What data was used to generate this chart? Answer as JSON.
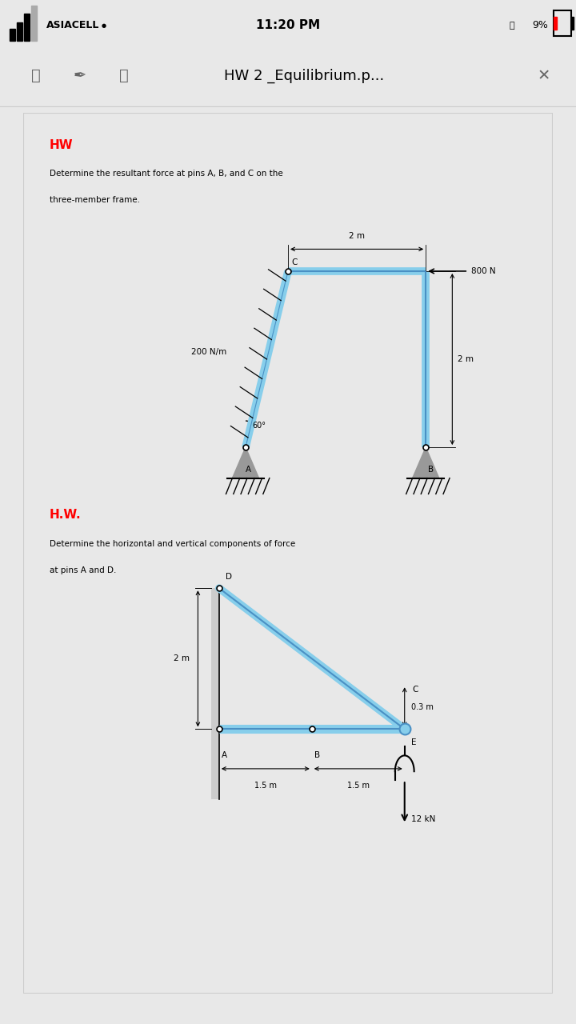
{
  "bg_outer": "#e8e8e8",
  "bg_page": "#ffffff",
  "status_bg": "#ffffff",
  "toolbar_bg": "#ffffff",
  "status_bar": {
    "carrier": "ASIACELL",
    "time": "11:20 PM",
    "battery": "9%"
  },
  "toolbar_title": "HW 2 _Equilibrium.p...",
  "beam_color": "#87CEEB",
  "beam_edge": "#4a90c4",
  "hw1": {
    "label": "HW",
    "desc1": "Determine the resultant force at pins A, B, and C on the",
    "desc2": "three-member frame.",
    "dim_top": "2 m",
    "force": "800 N",
    "dist_load": "200 N/m",
    "angle": "60°",
    "dim_right": "2 m"
  },
  "hw2": {
    "label": "H.W.",
    "desc1": "Determine the horizontal and vertical components of force",
    "desc2": "at pins A and D.",
    "dim_2m": "2 m",
    "dim_03m": "0.3 m",
    "dim_15L": "1.5 m",
    "dim_15R": "1.5 m",
    "force": "12 kN"
  }
}
